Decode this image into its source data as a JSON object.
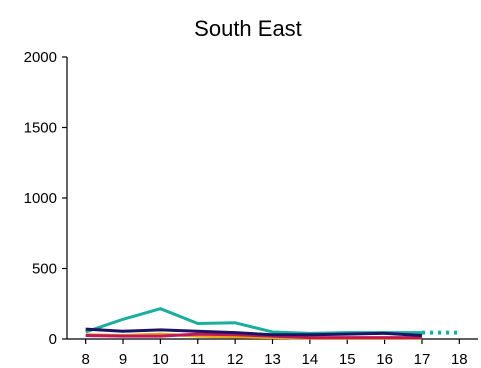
{
  "chart_data": {
    "type": "line",
    "title": "South East",
    "xlabel": "",
    "ylabel": "",
    "x_ticks": [
      "8",
      "9",
      "10",
      "11",
      "12",
      "13",
      "14",
      "15",
      "16",
      "17",
      "18"
    ],
    "y_ticks": [
      "0",
      "500",
      "1000",
      "1500",
      "2000"
    ],
    "xlim": [
      7.5,
      18.5
    ],
    "ylim": [
      0,
      2000
    ],
    "grid": false,
    "legend": "none",
    "series": [
      {
        "color": "#1aae9f",
        "x": [
          8,
          9,
          10,
          11,
          12,
          13,
          14,
          15,
          16,
          17
        ],
        "values": [
          50,
          140,
          215,
          110,
          115,
          50,
          40,
          45,
          45,
          45
        ],
        "projection": {
          "x": [
            17,
            18
          ],
          "values": [
            45,
            45
          ]
        }
      },
      {
        "color": "#e6a817",
        "x": [
          8,
          9,
          10,
          11,
          12,
          13,
          14,
          15,
          16,
          17
        ],
        "values": [
          30,
          25,
          35,
          20,
          15,
          10,
          5,
          5,
          5,
          5
        ]
      },
      {
        "color": "#c2185b",
        "x": [
          8,
          9,
          10,
          11,
          12,
          13,
          14,
          15,
          16,
          17
        ],
        "values": [
          25,
          20,
          20,
          35,
          30,
          20,
          10,
          10,
          10,
          10
        ]
      },
      {
        "color": "#1b1464",
        "x": [
          8,
          9,
          10,
          11,
          12,
          13,
          14,
          15,
          16,
          17
        ],
        "values": [
          70,
          55,
          65,
          55,
          45,
          30,
          30,
          35,
          40,
          25
        ]
      }
    ]
  }
}
